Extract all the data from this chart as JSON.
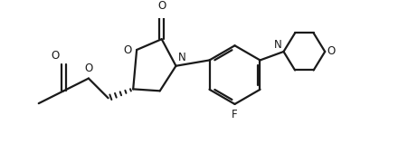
{
  "bg_color": "#ffffff",
  "line_color": "#1a1a1a",
  "line_width": 1.6,
  "figsize": [
    4.52,
    1.7
  ],
  "dpi": 100,
  "xlim": [
    0,
    10.0
  ],
  "ylim": [
    0,
    3.8
  ]
}
